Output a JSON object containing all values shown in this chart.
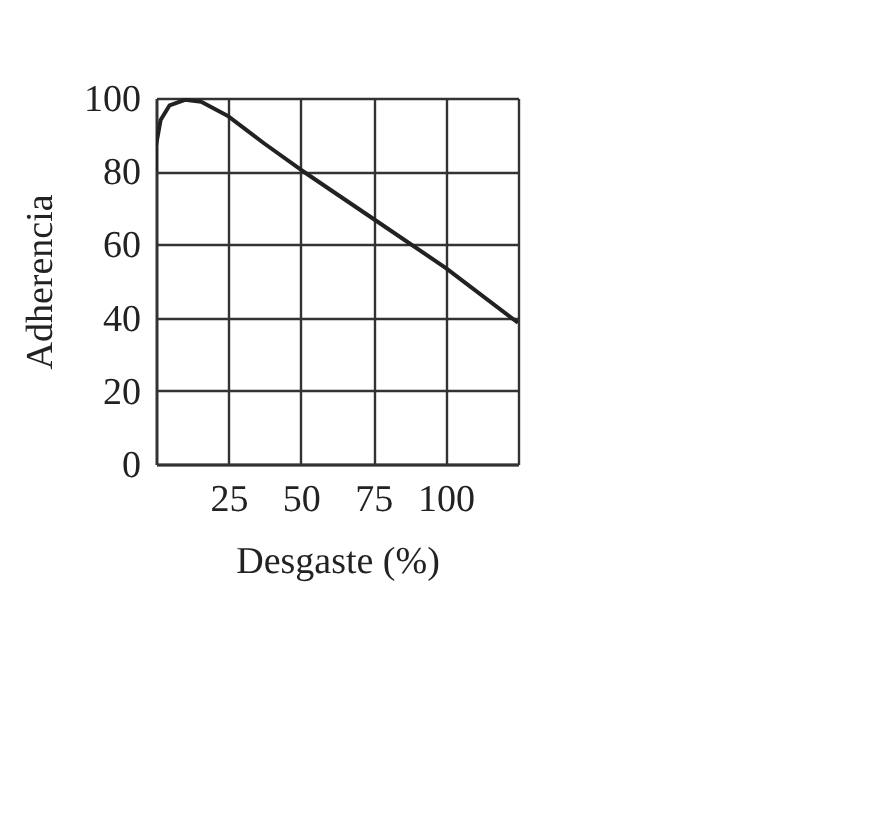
{
  "chart_data": {
    "type": "line",
    "xlabel": "Desgaste (%)",
    "ylabel": "Adherencia",
    "x": [
      0,
      0,
      1.6,
      4.7,
      10,
      15.6,
      25,
      37.5,
      50,
      75,
      100,
      125
    ],
    "series": [
      {
        "color": "#222222",
        "values": [
          80,
          87,
          94,
          98,
          99.5,
          99,
          95,
          87.5,
          80.4,
          67,
          53.6,
          38.6
        ]
      }
    ],
    "xlim": [
      0,
      125
    ],
    "xticks": [
      25,
      50,
      75,
      100,
      {
        "value": 125,
        "label": null
      }
    ],
    "ylim": [
      0,
      100
    ],
    "yticks": [
      0,
      20,
      40,
      60,
      80,
      100
    ],
    "grid": true,
    "marker": "none",
    "line_style": "solid"
  }
}
